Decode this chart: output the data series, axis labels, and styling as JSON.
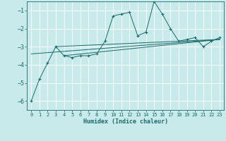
{
  "xlabel": "Humidex (Indice chaleur)",
  "ylabel": "",
  "bg_color": "#c8eaea",
  "line_color": "#1a6b6b",
  "grid_color": "#ffffff",
  "xlim": [
    -0.5,
    23.5
  ],
  "ylim": [
    -6.5,
    -0.5
  ],
  "yticks": [
    -6,
    -5,
    -4,
    -3,
    -2,
    -1
  ],
  "xticks": [
    0,
    1,
    2,
    3,
    4,
    5,
    6,
    7,
    8,
    9,
    10,
    11,
    12,
    13,
    14,
    15,
    16,
    17,
    18,
    19,
    20,
    21,
    22,
    23
  ],
  "series": [
    [
      0,
      -6.0
    ],
    [
      1,
      -4.8
    ],
    [
      2,
      -3.9
    ],
    [
      3,
      -3.0
    ],
    [
      4,
      -3.5
    ],
    [
      5,
      -3.6
    ],
    [
      6,
      -3.5
    ],
    [
      7,
      -3.5
    ],
    [
      8,
      -3.4
    ],
    [
      9,
      -2.7
    ],
    [
      10,
      -1.3
    ],
    [
      11,
      -1.2
    ],
    [
      12,
      -1.1
    ],
    [
      13,
      -2.4
    ],
    [
      14,
      -2.2
    ],
    [
      15,
      -0.5
    ],
    [
      16,
      -1.2
    ],
    [
      17,
      -2.0
    ],
    [
      18,
      -2.7
    ],
    [
      19,
      -2.6
    ],
    [
      20,
      -2.5
    ],
    [
      21,
      -3.0
    ],
    [
      22,
      -2.7
    ],
    [
      23,
      -2.5
    ]
  ],
  "trend_lines": [
    [
      [
        0,
        -3.4
      ],
      [
        23,
        -2.6
      ]
    ],
    [
      [
        3,
        -3.0
      ],
      [
        23,
        -2.6
      ]
    ],
    [
      [
        4,
        -3.5
      ],
      [
        23,
        -2.6
      ]
    ]
  ]
}
